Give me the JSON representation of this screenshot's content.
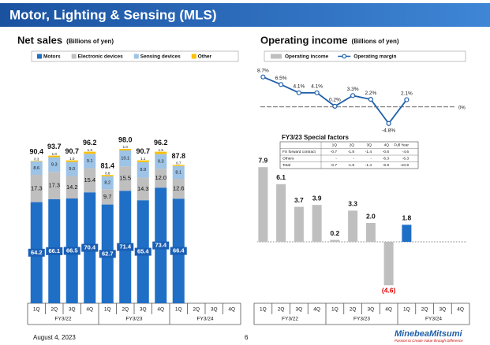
{
  "header": {
    "title": "Motor, Lighting & Sensing (MLS)"
  },
  "chart_data": [
    {
      "type": "stacked_bar",
      "title": "Net sales",
      "subtitle": "(Billions of yen)",
      "categories": [
        "1Q",
        "2Q",
        "3Q",
        "4Q",
        "1Q",
        "2Q",
        "3Q",
        "4Q",
        "1Q",
        "2Q",
        "3Q",
        "4Q"
      ],
      "groups": [
        "FY3/22",
        "FY3/23",
        "FY3/24"
      ],
      "series": [
        {
          "name": "Motors",
          "color": "#1f6fc6",
          "values": [
            64.2,
            66.1,
            66.5,
            70.4,
            62.7,
            71.4,
            65.4,
            73.4,
            66.4,
            null,
            null,
            null
          ],
          "value_labels": [
            "64.2",
            "66.1",
            "66.5",
            "70.4",
            "62.7",
            "71.4",
            "65.4",
            "73.4",
            "66.4",
            null,
            null,
            null
          ]
        },
        {
          "name": "Electronic devices",
          "color": "#bfbfbf",
          "values": [
            17.3,
            17.3,
            14.2,
            15.4,
            9.7,
            15.5,
            14.3,
            12.0,
            12.6,
            null,
            null,
            null
          ],
          "value_labels": [
            "17.3",
            "17.3",
            "14.2",
            "15.4",
            "9.7",
            "15.5",
            "14.3",
            "12.0",
            "12.6",
            null,
            null,
            null
          ]
        },
        {
          "name": "Sensing devices",
          "color": "#9dc3e6",
          "values": [
            8.6,
            9.3,
            9.0,
            9.1,
            8.2,
            10.1,
            9.9,
            9.3,
            8.1,
            null,
            null,
            null
          ],
          "value_labels": [
            "8.6",
            "9.3",
            "9.0",
            "9.1",
            "8.2",
            "10.1",
            "9.9",
            "9.3",
            "8.1",
            null,
            null,
            null
          ]
        },
        {
          "name": "Other",
          "color": "#ffc000",
          "values": [
            0.3,
            1.0,
            1.0,
            1.3,
            0.8,
            1.0,
            1.1,
            1.5,
            0.7,
            null,
            null,
            null
          ],
          "value_labels": [
            "0.3",
            "1.0",
            "1.0",
            "1.3",
            "0.8",
            "1.0",
            "1.1",
            "1.5",
            "0.7",
            null,
            null,
            null
          ]
        }
      ],
      "totals": [
        90.4,
        93.7,
        90.7,
        96.2,
        81.4,
        98.0,
        90.7,
        96.2,
        87.8,
        null,
        null,
        null
      ],
      "totals_labels": [
        "90.4",
        "93.7",
        "90.7",
        "96.2",
        "81.4",
        "98.0",
        "90.7",
        "96.2",
        "87.8",
        null,
        null,
        null
      ],
      "ylim": [
        0,
        100
      ],
      "legend": "top"
    },
    {
      "type": "bar_line",
      "title": "Operating income",
      "subtitle": "(Billions of yen)",
      "categories": [
        "1Q",
        "2Q",
        "3Q",
        "4Q",
        "1Q",
        "2Q",
        "3Q",
        "4Q",
        "1Q",
        "2Q",
        "3Q",
        "4Q"
      ],
      "groups": [
        "FY3/22",
        "FY3/23",
        "FY3/24"
      ],
      "series": [
        {
          "name": "Operating income",
          "colors": [
            "#bfbfbf",
            "#bfbfbf",
            "#bfbfbf",
            "#bfbfbf",
            "#bfbfbf",
            "#bfbfbf",
            "#bfbfbf",
            "#bfbfbf",
            "#1f6fc6",
            null,
            null,
            null
          ],
          "color": "#bfbfbf",
          "negative_label_color": "#e00000",
          "values": [
            7.9,
            6.1,
            3.7,
            3.9,
            0.2,
            3.3,
            2.0,
            -4.6,
            1.8,
            null,
            null,
            null
          ],
          "value_labels": [
            "7.9",
            "6.1",
            "3.7",
            "3.9",
            "0.2",
            "3.3",
            "2.0",
            "(4.6)",
            "1.8",
            null,
            null,
            null
          ]
        },
        {
          "name": "Operating margin",
          "axis": "y2",
          "color": "#1f5fa8",
          "values": [
            8.7,
            6.5,
            4.1,
            4.1,
            0.2,
            3.3,
            2.2,
            -4.8,
            2.1,
            null,
            null,
            null
          ],
          "value_labels": [
            "8.7%",
            "6.5%",
            "4.1%",
            "4.1%",
            "0.2%",
            "3.3%",
            "2.2%",
            "-4.8%",
            "2.1%",
            null,
            null,
            null
          ]
        }
      ],
      "ylim": [
        -5.5,
        8.5
      ],
      "y2lim": [
        -6,
        10
      ],
      "y2ticks": [
        {
          "value": 0,
          "label": "0%"
        }
      ],
      "legend": "top"
    }
  ],
  "special_factors": {
    "title": "FY3/23 Special factors",
    "columns": [
      "1Q",
      "2Q",
      "3Q",
      "4Q",
      "Full Year"
    ],
    "rows": [
      [
        "FX forward contract",
        "-0.7",
        "-1.8",
        "-1.4",
        "-0.6",
        "-4.6"
      ],
      [
        "Others",
        "-",
        "-",
        "-",
        "-6.3",
        "-6.3"
      ],
      [
        "Total",
        "-0.7",
        "-1.8",
        "-1.4",
        "-6.9",
        "-10.9"
      ]
    ]
  },
  "footer": {
    "date": "August 4, 2023",
    "page": "6",
    "logo": "MinebeaMitsumi",
    "tagline": "Passion to Create Value through Difference"
  }
}
